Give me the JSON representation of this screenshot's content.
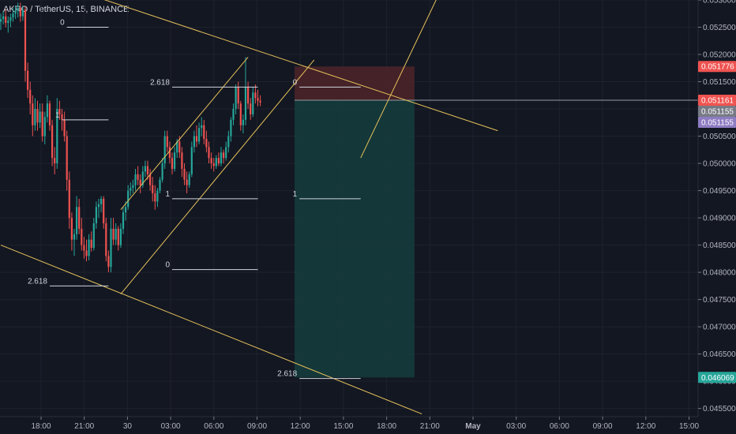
{
  "header": {
    "title": "AKRO / TetherUS, 15, BINANCE"
  },
  "colors": {
    "background": "#131722",
    "grid": "#1e222d",
    "up": "#26a69a",
    "down": "#ef5350",
    "trendline": "#e6c15a",
    "fib": "#d1d4dc",
    "stop_zone": "#4a2428",
    "target_zone": "#153b3c"
  },
  "chart_data": {
    "type": "candlestick",
    "symbol": "AKRO / TetherUS",
    "interval": "15",
    "exchange": "BINANCE",
    "ylim": [
      0.04535,
      0.053
    ],
    "grid": true,
    "y_ticks": [
      "0.053000",
      "0.052500",
      "0.052000",
      "0.051500",
      "0.051000",
      "0.050500",
      "0.050000",
      "0.049500",
      "0.049000",
      "0.048500",
      "0.048000",
      "0.047500",
      "0.047000",
      "0.046500",
      "0.046000",
      "0.045500"
    ],
    "x_ticks": [
      "18:00",
      "21:00",
      "30",
      "03:00",
      "06:00",
      "09:00",
      "12:00",
      "15:00",
      "18:00",
      "21:00",
      "May",
      "03:00",
      "06:00",
      "09:00",
      "12:00",
      "15:00"
    ],
    "price_labels": [
      {
        "value": "0.051776",
        "color": "#ef5350"
      },
      {
        "value": "0.051161",
        "color": "#ef5350"
      },
      {
        "value": "0.051155",
        "color": "#787b86"
      },
      {
        "value": "0.051155",
        "color": "#8e7cc3"
      },
      {
        "value": "0.046069",
        "color": "#26a69a"
      }
    ],
    "position": {
      "type": "short",
      "entry": 0.05116,
      "stop": 0.05178,
      "target": 0.04607,
      "start_bar": 120,
      "end_bar": 169
    },
    "candles_ohlc": [
      [
        0.0526,
        0.05275,
        0.05245,
        0.05265
      ],
      [
        0.05265,
        0.0528,
        0.05255,
        0.0527
      ],
      [
        0.0527,
        0.05282,
        0.0525,
        0.05258
      ],
      [
        0.05258,
        0.0527,
        0.0524,
        0.05262
      ],
      [
        0.05262,
        0.05275,
        0.0525,
        0.05268
      ],
      [
        0.05268,
        0.05285,
        0.0526,
        0.05275
      ],
      [
        0.05275,
        0.0529,
        0.05265,
        0.0528
      ],
      [
        0.0528,
        0.05295,
        0.05268,
        0.05285
      ],
      [
        0.05285,
        0.05295,
        0.0526,
        0.0527
      ],
      [
        0.0527,
        0.0529,
        0.05262,
        0.05282
      ],
      [
        0.05282,
        0.05288,
        0.0515,
        0.0517
      ],
      [
        0.0517,
        0.05185,
        0.0512,
        0.05135
      ],
      [
        0.05135,
        0.0515,
        0.0509,
        0.0511
      ],
      [
        0.0511,
        0.05125,
        0.0505,
        0.0507
      ],
      [
        0.0507,
        0.0512,
        0.0506,
        0.051
      ],
      [
        0.051,
        0.05115,
        0.0506,
        0.05075
      ],
      [
        0.05075,
        0.0511,
        0.05065,
        0.05095
      ],
      [
        0.05095,
        0.0511,
        0.0504,
        0.0505
      ],
      [
        0.0505,
        0.05095,
        0.05035,
        0.05085
      ],
      [
        0.05085,
        0.05125,
        0.05075,
        0.0511
      ],
      [
        0.0511,
        0.05115,
        0.0506,
        0.0507
      ],
      [
        0.0507,
        0.0508,
        0.04995,
        0.0501
      ],
      [
        0.0501,
        0.0503,
        0.0498,
        0.05
      ],
      [
        0.05,
        0.0512,
        0.0499,
        0.051
      ],
      [
        0.051,
        0.05115,
        0.0508,
        0.0509
      ],
      [
        0.0509,
        0.051,
        0.0506,
        0.0508
      ],
      [
        0.0508,
        0.05095,
        0.0504,
        0.0505
      ],
      [
        0.0505,
        0.0506,
        0.0495,
        0.0497
      ],
      [
        0.0497,
        0.04985,
        0.0488,
        0.049
      ],
      [
        0.049,
        0.0491,
        0.0484,
        0.0486
      ],
      [
        0.0486,
        0.0488,
        0.0483,
        0.0487
      ],
      [
        0.0487,
        0.0494,
        0.0486,
        0.0492
      ],
      [
        0.0492,
        0.04935,
        0.0487,
        0.0488
      ],
      [
        0.0488,
        0.049,
        0.0484,
        0.0485
      ],
      [
        0.0485,
        0.04865,
        0.04825,
        0.0484
      ],
      [
        0.0484,
        0.0486,
        0.0482,
        0.0483
      ],
      [
        0.0483,
        0.0487,
        0.04822,
        0.0486
      ],
      [
        0.0486,
        0.04875,
        0.04838,
        0.04845
      ],
      [
        0.04845,
        0.049,
        0.0484,
        0.0489
      ],
      [
        0.0489,
        0.0493,
        0.0488,
        0.0492
      ],
      [
        0.0492,
        0.04935,
        0.049,
        0.04925
      ],
      [
        0.04925,
        0.0494,
        0.0491,
        0.04935
      ],
      [
        0.04935,
        0.0494,
        0.0488,
        0.0489
      ],
      [
        0.0489,
        0.049,
        0.0482,
        0.0483
      ],
      [
        0.0483,
        0.0484,
        0.048,
        0.0481
      ],
      [
        0.0481,
        0.049,
        0.048,
        0.0488
      ],
      [
        0.0488,
        0.049,
        0.0485,
        0.0486
      ],
      [
        0.0486,
        0.0489,
        0.0485,
        0.0488
      ],
      [
        0.0488,
        0.04885,
        0.0484,
        0.0485
      ],
      [
        0.0485,
        0.0489,
        0.04845,
        0.0488
      ],
      [
        0.0488,
        0.0492,
        0.0487,
        0.0491
      ],
      [
        0.0491,
        0.0493,
        0.04895,
        0.0492
      ],
      [
        0.0492,
        0.0496,
        0.04915,
        0.0495
      ],
      [
        0.0495,
        0.04965,
        0.0494,
        0.04955
      ],
      [
        0.04955,
        0.0497,
        0.04945,
        0.0496
      ],
      [
        0.0496,
        0.0499,
        0.0495,
        0.0498
      ],
      [
        0.0498,
        0.04995,
        0.0496,
        0.0497
      ],
      [
        0.0497,
        0.0498,
        0.04945,
        0.0496
      ],
      [
        0.0496,
        0.04995,
        0.04955,
        0.04985
      ],
      [
        0.04985,
        0.05005,
        0.04975,
        0.04995
      ],
      [
        0.04995,
        0.05005,
        0.0497,
        0.0498
      ],
      [
        0.0498,
        0.0499,
        0.0495,
        0.0496
      ],
      [
        0.0496,
        0.04975,
        0.0493,
        0.04945
      ],
      [
        0.04945,
        0.0496,
        0.04915,
        0.0493
      ],
      [
        0.0493,
        0.04955,
        0.0492,
        0.0495
      ],
      [
        0.0495,
        0.04975,
        0.04945,
        0.0497
      ],
      [
        0.0497,
        0.0501,
        0.04965,
        0.05
      ],
      [
        0.05,
        0.0506,
        0.0499,
        0.0505
      ],
      [
        0.0505,
        0.0506,
        0.0502,
        0.0503
      ],
      [
        0.0503,
        0.0504,
        0.05,
        0.0501
      ],
      [
        0.0501,
        0.0502,
        0.0498,
        0.0499
      ],
      [
        0.0499,
        0.0503,
        0.04985,
        0.0502
      ],
      [
        0.0502,
        0.05045,
        0.0501,
        0.0504
      ],
      [
        0.0504,
        0.0505,
        0.0501,
        0.0502
      ],
      [
        0.0502,
        0.0503,
        0.04975,
        0.0499
      ],
      [
        0.0499,
        0.05,
        0.0496,
        0.0497
      ],
      [
        0.0497,
        0.04985,
        0.04945,
        0.0496
      ],
      [
        0.0496,
        0.04985,
        0.04955,
        0.0498
      ],
      [
        0.0498,
        0.0504,
        0.04975,
        0.0503
      ],
      [
        0.0503,
        0.0506,
        0.0502,
        0.0505
      ],
      [
        0.0505,
        0.0507,
        0.0503,
        0.0504
      ],
      [
        0.0504,
        0.05075,
        0.05035,
        0.05065
      ],
      [
        0.05065,
        0.05085,
        0.0505,
        0.0507
      ],
      [
        0.0507,
        0.0508,
        0.05035,
        0.05045
      ],
      [
        0.05045,
        0.0506,
        0.0502,
        0.0503
      ],
      [
        0.0503,
        0.0504,
        0.05,
        0.0501
      ],
      [
        0.0501,
        0.0502,
        0.0499,
        0.05
      ],
      [
        0.05,
        0.0501,
        0.04985,
        0.04995
      ],
      [
        0.04995,
        0.05015,
        0.0499,
        0.0501
      ],
      [
        0.0501,
        0.0502,
        0.04995,
        0.05
      ],
      [
        0.05,
        0.0503,
        0.04995,
        0.0502
      ],
      [
        0.0502,
        0.05025,
        0.05,
        0.0501
      ],
      [
        0.0501,
        0.0504,
        0.05005,
        0.0503
      ],
      [
        0.0503,
        0.0506,
        0.0502,
        0.0505
      ],
      [
        0.0505,
        0.05085,
        0.0504,
        0.0508
      ],
      [
        0.0508,
        0.0511,
        0.0507,
        0.051
      ],
      [
        0.051,
        0.05145,
        0.0509,
        0.0514
      ],
      [
        0.0514,
        0.0515,
        0.051,
        0.0511
      ],
      [
        0.0511,
        0.05115,
        0.0506,
        0.0507
      ],
      [
        0.0507,
        0.0509,
        0.05055,
        0.0508
      ],
      [
        0.0508,
        0.05195,
        0.0507,
        0.0514
      ],
      [
        0.0514,
        0.0515,
        0.051,
        0.0511
      ],
      [
        0.0511,
        0.0512,
        0.0508,
        0.0509
      ],
      [
        0.0509,
        0.0514,
        0.05085,
        0.0513
      ],
      [
        0.0513,
        0.05145,
        0.0511,
        0.0512
      ],
      [
        0.0512,
        0.05135,
        0.05105,
        0.05115
      ],
      [
        0.05115,
        0.05125,
        0.05105,
        0.05112
      ]
    ],
    "lines": [
      {
        "name": "upper-channel",
        "from": [
          49,
          0.04915
        ],
        "to": [
          101,
          0.05195
        ]
      },
      {
        "name": "lower-channel",
        "from": [
          49,
          0.0476
        ],
        "to": [
          128,
          0.0519
        ]
      },
      {
        "name": "upper-falling",
        "from": [
          36,
          0.0531
        ],
        "to": [
          203,
          0.0506
        ]
      },
      {
        "name": "outer-rising",
        "from": [
          147,
          0.0501
        ],
        "to": [
          181,
          0.0533
        ]
      },
      {
        "name": "lower-falling",
        "from": [
          0,
          0.0485
        ],
        "to": [
          172,
          0.0454
        ]
      }
    ],
    "fib_levels": [
      {
        "label": "0",
        "from": [
          27,
          0.0525
        ],
        "to": [
          44,
          0.0525
        ]
      },
      {
        "label": "1",
        "from": [
          25,
          0.0508
        ],
        "to": [
          44,
          0.0508
        ]
      },
      {
        "label": "2.618",
        "from": [
          20,
          0.04775
        ],
        "to": [
          44,
          0.04775
        ]
      },
      {
        "label": "2.618",
        "from": [
          70,
          0.0514
        ],
        "to": [
          105,
          0.0514
        ]
      },
      {
        "label": "1",
        "from": [
          70,
          0.04935
        ],
        "to": [
          105,
          0.04935
        ]
      },
      {
        "label": "0",
        "from": [
          70,
          0.04805
        ],
        "to": [
          105,
          0.04805
        ]
      },
      {
        "label": "0",
        "from": [
          122,
          0.0514
        ],
        "to": [
          147,
          0.0514
        ]
      },
      {
        "label": "1",
        "from": [
          122,
          0.04935
        ],
        "to": [
          147,
          0.04935
        ]
      },
      {
        "label": "2.618",
        "from": [
          122,
          0.04605
        ],
        "to": [
          147,
          0.04605
        ]
      }
    ]
  }
}
